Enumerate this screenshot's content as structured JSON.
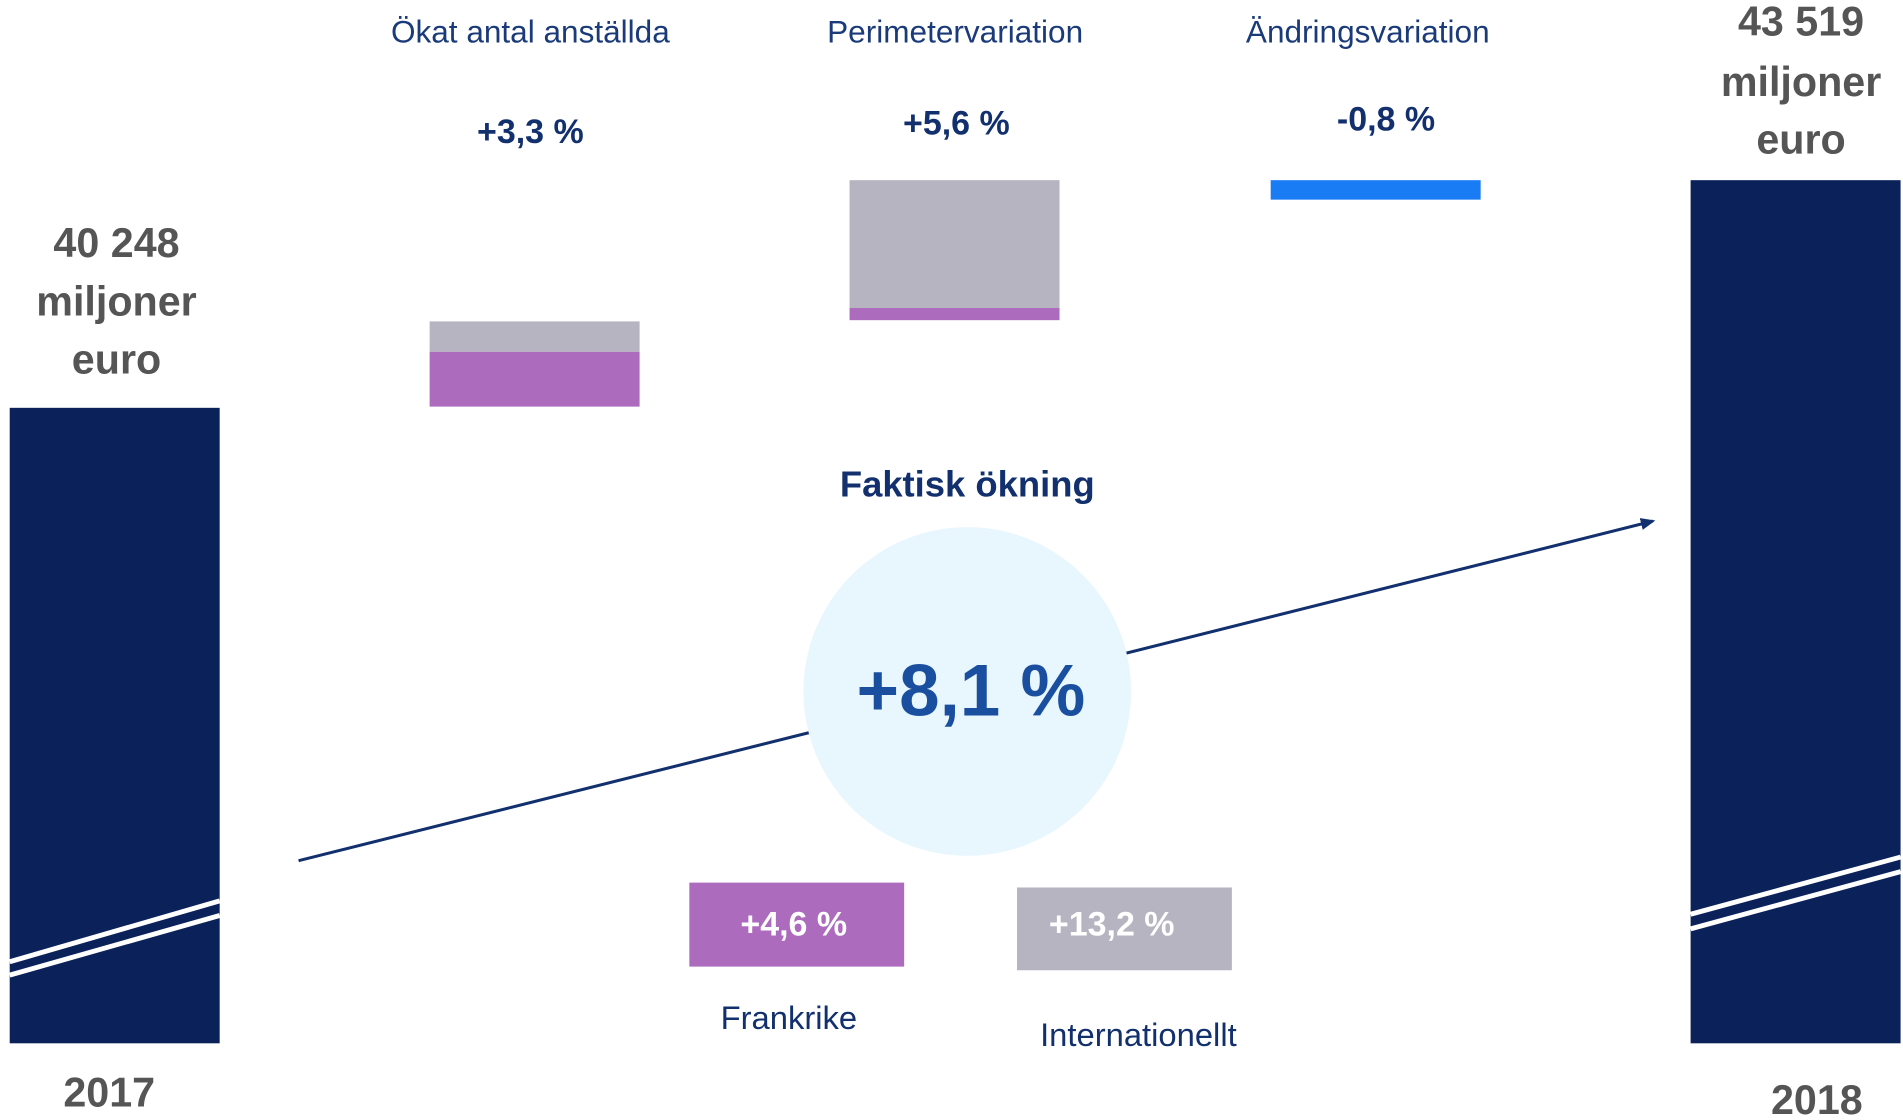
{
  "start": {
    "amount": [
      "40 248",
      "miljoner",
      "euro"
    ],
    "year": "2017"
  },
  "end": {
    "amount": [
      "43 519",
      "miljoner",
      "euro"
    ],
    "year": "2018"
  },
  "factors": [
    {
      "label": "Ökat antal anställda",
      "change": "+3,3 %"
    },
    {
      "label": "Perimetervariation",
      "change": "+5,6 %"
    },
    {
      "label": "Ändringsvariation",
      "change": "-0,8 %"
    }
  ],
  "actual": {
    "title": "Faktisk ökning",
    "change": "+8,1 %"
  },
  "breakdown": [
    {
      "label": "Frankrike",
      "change": "+4,6 %"
    },
    {
      "label": "Internationellt",
      "change": "+13,2 %"
    }
  ]
}
